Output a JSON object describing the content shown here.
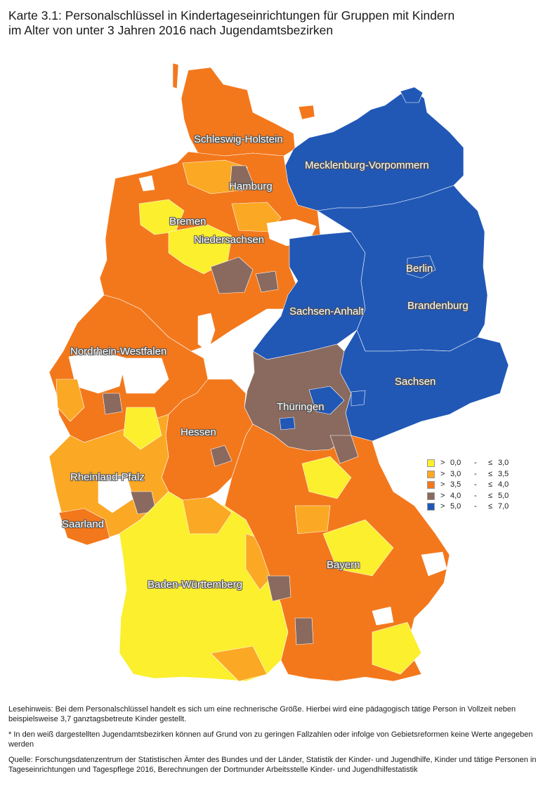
{
  "title": {
    "line1": "Karte 3.1: Personalschlüssel in Kindertageseinrichtungen für Gruppen mit Kindern",
    "line2": "im Alter von unter 3 Jahren 2016 nach Jugendamtsbezirken"
  },
  "colors": {
    "class_1": "#fbef2e",
    "class_2": "#fba824",
    "class_3": "#f3781c",
    "class_4": "#8a6a5e",
    "class_5": "#2158b6",
    "no_data": "#ffffff",
    "label_outline": "#555555"
  },
  "states": [
    {
      "id": "schleswig-holstein",
      "label": "Schleswig-Holstein"
    },
    {
      "id": "mecklenburg-vorpommern",
      "label": "Mecklenburg-Vorpommern"
    },
    {
      "id": "hamburg",
      "label": "Hamburg"
    },
    {
      "id": "bremen",
      "label": "Bremen"
    },
    {
      "id": "niedersachsen",
      "label": "Niedersachsen"
    },
    {
      "id": "berlin",
      "label": "Berlin"
    },
    {
      "id": "brandenburg",
      "label": "Brandenburg"
    },
    {
      "id": "sachsen-anhalt",
      "label": "Sachsen-Anhalt"
    },
    {
      "id": "nordrhein-westfalen",
      "label": "Nordrhein-Westfalen"
    },
    {
      "id": "sachsen",
      "label": "Sachsen"
    },
    {
      "id": "thueringen",
      "label": "Thüringen"
    },
    {
      "id": "hessen",
      "label": "Hessen"
    },
    {
      "id": "rheinland-pfalz",
      "label": "Rheinland-Pfalz"
    },
    {
      "id": "saarland",
      "label": "Saarland"
    },
    {
      "id": "bayern",
      "label": "Bayern"
    },
    {
      "id": "baden-wuerttemberg",
      "label": "Baden-Württemberg"
    }
  ],
  "legend": [
    {
      "op": ">",
      "lo": "0,0",
      "sep": "-",
      "le": "≤",
      "hi": "3,0",
      "color": "#fbef2e"
    },
    {
      "op": ">",
      "lo": "3,0",
      "sep": "-",
      "le": "≤",
      "hi": "3,5",
      "color": "#fba824"
    },
    {
      "op": ">",
      "lo": "3,5",
      "sep": "-",
      "le": "≤",
      "hi": "4,0",
      "color": "#f3781c"
    },
    {
      "op": ">",
      "lo": "4,0",
      "sep": "-",
      "le": "≤",
      "hi": "5,0",
      "color": "#8a6a5e"
    },
    {
      "op": ">",
      "lo": "5,0",
      "sep": "-",
      "le": "≤",
      "hi": "7,0",
      "color": "#2158b6"
    }
  ],
  "notes": {
    "reading_hint": "Lesehinweis: Bei dem Personalschlüssel handelt es sich um eine rechnerische Größe. Hierbei wird eine pädagogisch tätige Person in Vollzeit neben beispielsweise 3,7 ganztagsbetreute Kinder gestellt.",
    "footnote": "* In den weiß dargestellten Jugendamtsbezirken können auf Grund von zu geringen Fallzahlen oder infolge von Gebietsreformen keine Werte angegeben werden",
    "source": "Quelle: Forschungsdatenzentrum der Statistischen Ämter des Bundes und der Länder, Statistik der Kinder- und Jugendhilfe, Kinder und tätige Personen in Tageseinrichtungen und Tagespflege 2016, Berechnungen der Dortmunder Arbeitsstelle Kinder- und Jugendhilfestatistik"
  }
}
